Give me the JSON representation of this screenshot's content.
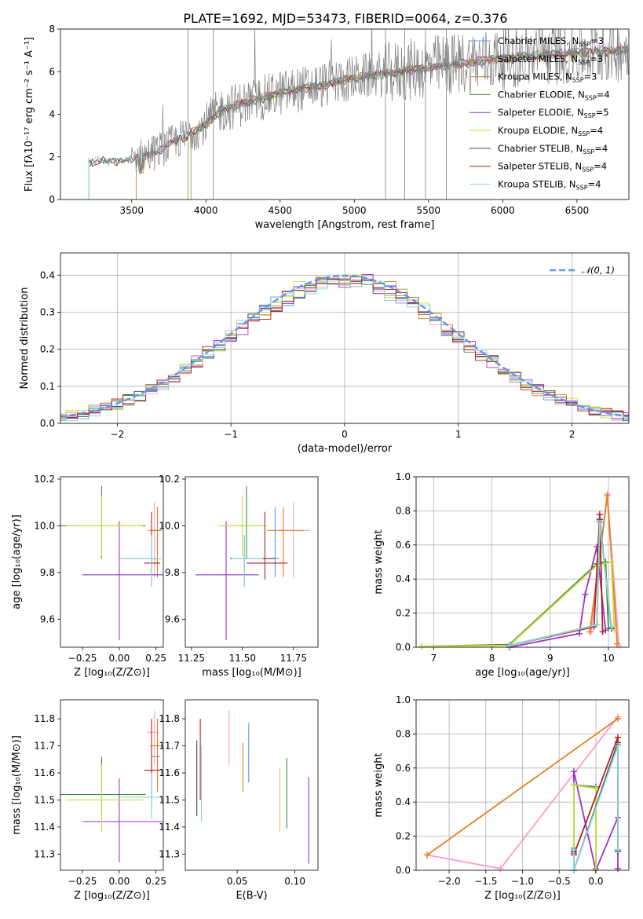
{
  "figure": {
    "title": "PLATE=1692, MJD=53473, FIBERID=0064, z=0.376"
  },
  "chart_data": [
    {
      "type": "line",
      "panel": "spectrum",
      "xlabel": "wavelength [Angstrom, rest frame]",
      "ylabel": "Flux [fλ10⁻¹⁷ erg cm⁻² s⁻¹ A⁻¹]",
      "xlim": [
        3020,
        6850
      ],
      "ylim": [
        0,
        8
      ],
      "xticks": [
        3500,
        4000,
        4500,
        5000,
        5500,
        6000,
        6500
      ],
      "yticks": [
        0,
        2,
        4,
        6,
        8
      ],
      "legend_position": "top-right",
      "continuum": {
        "x": [
          3200,
          3500,
          3700,
          4000,
          4100,
          4300,
          4500,
          4800,
          5000,
          5300,
          5600,
          5900,
          6200,
          6500,
          6850
        ],
        "y": [
          1.75,
          1.85,
          2.35,
          3.5,
          4.2,
          4.6,
          5.0,
          5.4,
          5.7,
          6.0,
          6.3,
          6.55,
          6.75,
          6.9,
          7.0
        ]
      },
      "series": [
        {
          "name": "Chabrier MILES, N_SSP=3",
          "label_main": "Chabrier MILES, N",
          "label_sub": "SSP",
          "label_tail": "=3",
          "color": "#6495ed",
          "xmin": 3530
        },
        {
          "name": "Salpeter MILES, N_SSP=3",
          "label_main": "Salpeter MILES, N",
          "label_sub": "SSP",
          "label_tail": "=3",
          "color": "#ff99cc",
          "xmin": 3530
        },
        {
          "name": "Kroupa MILES, N_SSP=3",
          "label_main": "Kroupa MILES, N",
          "label_sub": "SSP",
          "label_tail": "=3",
          "color": "#e08020",
          "xmin": 3530
        },
        {
          "name": "Chabrier ELODIE, N_SSP=4",
          "label_main": "Chabrier ELODIE, N",
          "label_sub": "SSP",
          "label_tail": "=4",
          "color": "#4a8a4a",
          "xmin": 3900
        },
        {
          "name": "Salpeter ELODIE, N_SSP=5",
          "label_main": "Salpeter ELODIE, N",
          "label_sub": "SSP",
          "label_tail": "=5",
          "color": "#9932cc",
          "xmin": 3900
        },
        {
          "name": "Kroupa ELODIE, N_SSP=4",
          "label_main": "Kroupa ELODIE, N",
          "label_sub": "SSP",
          "label_tail": "=4",
          "color": "#c8e03a",
          "xmin": 3900
        },
        {
          "name": "Chabrier STELIB, N_SSP=4",
          "label_main": "Chabrier STELIB, N",
          "label_sub": "SSP",
          "label_tail": "=4",
          "color": "#444444",
          "xmin": 3210
        },
        {
          "name": "Salpeter STELIB, N_SSP=4",
          "label_main": "Salpeter STELIB, N",
          "label_sub": "SSP",
          "label_tail": "=4",
          "color": "#b22222",
          "xmin": 3210
        },
        {
          "name": "Kroupa STELIB, N_SSP=4",
          "label_main": "Kroupa STELIB, N",
          "label_sub": "SSP",
          "label_tail": "=4",
          "color": "#88d8d8",
          "xmin": 3210
        }
      ],
      "data_color": "#808080"
    },
    {
      "type": "line",
      "panel": "residual-histogram",
      "xlabel": "(data-model)/error",
      "ylabel": "Normed distribution",
      "xlim": [
        -2.5,
        2.5
      ],
      "ylim": [
        0,
        0.46
      ],
      "xticks": [
        -2,
        -1,
        0,
        1,
        2
      ],
      "yticks": [
        0.0,
        0.1,
        0.2,
        0.3,
        0.4
      ],
      "grid": true,
      "legend_position": "top-right",
      "reference": {
        "name": "𝒩(0, 1)",
        "mean": 0,
        "sigma": 1,
        "color": "#6495ed"
      },
      "bin_width": 0.1,
      "hist_colors": [
        "#6495ed",
        "#ff99cc",
        "#e08020",
        "#4a8a4a",
        "#9932cc",
        "#c8e03a",
        "#444444",
        "#b22222",
        "#88d8d8"
      ]
    },
    {
      "type": "scatter",
      "panel": "age-vs-metallicity",
      "xlabel": "Z [log₁₀(Z/Z⊙)]",
      "ylabel": "age [log₁₀(age/yr)]",
      "xlim": [
        -0.4,
        0.3
      ],
      "ylim": [
        9.48,
        10.21
      ],
      "xticks": [
        -0.25,
        0.0,
        0.25
      ],
      "yticks": [
        9.6,
        9.8,
        10.0,
        10.2
      ],
      "points": [
        {
          "color": "#6495ed",
          "x": 0.26,
          "xerr": [
            0.04,
            0.02
          ],
          "y": 9.86,
          "yerr": [
            0.08,
            0.22
          ]
        },
        {
          "color": "#ff99cc",
          "x": 0.24,
          "xerr": [
            0.05,
            0.03
          ],
          "y": 9.98,
          "yerr": [
            0.2,
            0.12
          ]
        },
        {
          "color": "#e08020",
          "x": 0.26,
          "xerr": [
            0.05,
            0.03
          ],
          "y": 9.98,
          "yerr": [
            0.2,
            0.1
          ]
        },
        {
          "color": "#4a8a4a",
          "x": -0.12,
          "xerr": [
            0.28,
            0.3
          ],
          "y": 10.0,
          "yerr": [
            0.14,
            0.17
          ]
        },
        {
          "color": "#9932cc",
          "x": 0.0,
          "xerr": [
            0.25,
            0.3
          ],
          "y": 9.79,
          "yerr": [
            0.28,
            0.23
          ]
        },
        {
          "color": "#c8e03a",
          "x": -0.12,
          "xerr": [
            0.24,
            0.28
          ],
          "y": 10.0,
          "yerr": [
            0.13,
            0.13
          ]
        },
        {
          "color": "#444444",
          "x": 0.22,
          "xerr": [
            0.22,
            0.04
          ],
          "y": 9.86,
          "yerr": [
            0.12,
            0.1
          ]
        },
        {
          "color": "#b22222",
          "x": 0.22,
          "xerr": [
            0.05,
            0.06
          ],
          "y": 9.84,
          "yerr": [
            0.07,
            0.22
          ]
        },
        {
          "color": "#88d8d8",
          "x": 0.22,
          "xerr": [
            0.22,
            0.07
          ],
          "y": 9.86,
          "yerr": [
            0.12,
            0.1
          ]
        }
      ]
    },
    {
      "type": "scatter",
      "panel": "age-vs-mass",
      "xlabel": "mass [log₁₀(M/M⊙)]",
      "ylabel": "",
      "xlim": [
        11.22,
        11.87
      ],
      "ylim": [
        9.48,
        10.21
      ],
      "xticks": [
        11.25,
        11.5,
        11.75
      ],
      "yticks": [
        9.6,
        9.8,
        10.0,
        10.2
      ],
      "points": [
        {
          "color": "#6495ed",
          "x": 11.66,
          "xerr": [
            0.04,
            0.02
          ],
          "y": 9.86,
          "yerr": [
            0.08,
            0.22
          ]
        },
        {
          "color": "#ff99cc",
          "x": 11.75,
          "xerr": [
            0.1,
            0.08
          ],
          "y": 9.98,
          "yerr": [
            0.2,
            0.12
          ]
        },
        {
          "color": "#e08020",
          "x": 11.7,
          "xerr": [
            0.08,
            0.1
          ],
          "y": 9.98,
          "yerr": [
            0.2,
            0.1
          ]
        },
        {
          "color": "#4a8a4a",
          "x": 11.52,
          "xerr": [
            0.12,
            0.08
          ],
          "y": 10.0,
          "yerr": [
            0.14,
            0.17
          ]
        },
        {
          "color": "#9932cc",
          "x": 11.42,
          "xerr": [
            0.15,
            0.16
          ],
          "y": 9.79,
          "yerr": [
            0.28,
            0.23
          ]
        },
        {
          "color": "#c8e03a",
          "x": 11.5,
          "xerr": [
            0.12,
            0.12
          ],
          "y": 10.0,
          "yerr": [
            0.13,
            0.13
          ]
        },
        {
          "color": "#444444",
          "x": 11.51,
          "xerr": [
            0.07,
            0.15
          ],
          "y": 9.86,
          "yerr": [
            0.12,
            0.1
          ]
        },
        {
          "color": "#b22222",
          "x": 11.61,
          "xerr": [
            0.09,
            0.11
          ],
          "y": 9.84,
          "yerr": [
            0.07,
            0.22
          ]
        },
        {
          "color": "#88d8d8",
          "x": 11.51,
          "xerr": [
            0.06,
            0.09
          ],
          "y": 9.86,
          "yerr": [
            0.12,
            0.1
          ]
        }
      ]
    },
    {
      "type": "line",
      "panel": "mass-weight-vs-age",
      "xlabel": "age [log₁₀(age/yr)]",
      "ylabel": "mass weight",
      "xlim": [
        6.7,
        10.35
      ],
      "ylim": [
        0,
        1
      ],
      "xticks": [
        7,
        8,
        9,
        10
      ],
      "yticks": [
        0.0,
        0.2,
        0.4,
        0.6,
        0.8,
        1.0
      ],
      "grid": true,
      "series": [
        {
          "color": "#6495ed",
          "x": [
            8.3,
            9.8,
            9.85,
            10.05
          ],
          "y": [
            0.01,
            0.13,
            0.74,
            0.12
          ]
        },
        {
          "color": "#ff99cc",
          "x": [
            9.7,
            9.98,
            10.18
          ],
          "y": [
            0.09,
            0.9,
            0.01
          ]
        },
        {
          "color": "#e08020",
          "x": [
            9.68,
            9.98,
            10.15
          ],
          "y": [
            0.09,
            0.89,
            0.02
          ]
        },
        {
          "color": "#4a8a4a",
          "x": [
            6.8,
            8.3,
            9.8,
            9.95,
            10.0
          ],
          "y": [
            0.005,
            0.015,
            0.49,
            0.5,
            0.11
          ]
        },
        {
          "color": "#9932cc",
          "x": [
            8.3,
            9.5,
            9.6,
            9.8,
            9.95
          ],
          "y": [
            0.0,
            0.08,
            0.31,
            0.59,
            0.1
          ]
        },
        {
          "color": "#c8e03a",
          "x": [
            6.8,
            8.3,
            9.8,
            10.05,
            10.1
          ],
          "y": [
            0.005,
            0.01,
            0.48,
            0.5,
            0.1
          ]
        },
        {
          "color": "#444444",
          "x": [
            8.3,
            9.8,
            9.85,
            10.05
          ],
          "y": [
            0.01,
            0.13,
            0.75,
            0.11
          ]
        },
        {
          "color": "#b22222",
          "x": [
            8.3,
            9.75,
            9.85,
            9.9
          ],
          "y": [
            0.01,
            0.12,
            0.78,
            0.09
          ]
        },
        {
          "color": "#88d8d8",
          "x": [
            8.3,
            9.8,
            9.85,
            10.05
          ],
          "y": [
            0.01,
            0.13,
            0.73,
            0.12
          ]
        }
      ]
    },
    {
      "type": "scatter",
      "panel": "mass-vs-metallicity",
      "xlabel": "Z [log₁₀(Z/Z⊙)]",
      "ylabel": "mass [log₁₀(M/M⊙)]",
      "xlim": [
        -0.4,
        0.3
      ],
      "ylim": [
        11.24,
        11.87
      ],
      "xticks": [
        -0.25,
        0.0,
        0.25
      ],
      "yticks": [
        11.3,
        11.4,
        11.5,
        11.6,
        11.7,
        11.8
      ],
      "points": [
        {
          "color": "#6495ed",
          "x": 0.26,
          "xerr": [
            0.04,
            0.02
          ],
          "y": 11.66,
          "yerr": [
            0.1,
            0.13
          ]
        },
        {
          "color": "#ff99cc",
          "x": 0.24,
          "xerr": [
            0.05,
            0.03
          ],
          "y": 11.75,
          "yerr": [
            0.12,
            0.08
          ]
        },
        {
          "color": "#e08020",
          "x": 0.26,
          "xerr": [
            0.05,
            0.03
          ],
          "y": 11.7,
          "yerr": [
            0.17,
            0.1
          ]
        },
        {
          "color": "#4a8a4a",
          "x": -0.12,
          "xerr": [
            0.28,
            0.3
          ],
          "y": 11.52,
          "yerr": [
            0.08,
            0.14
          ]
        },
        {
          "color": "#9932cc",
          "x": 0.0,
          "xerr": [
            0.25,
            0.3
          ],
          "y": 11.42,
          "yerr": [
            0.15,
            0.16
          ]
        },
        {
          "color": "#c8e03a",
          "x": -0.12,
          "xerr": [
            0.24,
            0.28
          ],
          "y": 11.5,
          "yerr": [
            0.12,
            0.13
          ]
        },
        {
          "color": "#444444",
          "x": 0.22,
          "xerr": [
            0.22,
            0.04
          ],
          "y": 11.51,
          "yerr": [
            0.06,
            0.15
          ]
        },
        {
          "color": "#b22222",
          "x": 0.22,
          "xerr": [
            0.05,
            0.06
          ],
          "y": 11.61,
          "yerr": [
            0.1,
            0.19
          ]
        },
        {
          "color": "#88d8d8",
          "x": 0.22,
          "xerr": [
            0.22,
            0.07
          ],
          "y": 11.51,
          "yerr": [
            0.08,
            0.09
          ]
        }
      ]
    },
    {
      "type": "scatter",
      "panel": "mass-vs-ebv",
      "xlabel": "E(B-V)",
      "ylabel": "",
      "xlim": [
        0.005,
        0.12
      ],
      "ylim": [
        11.24,
        11.87
      ],
      "xticks": [
        0.05,
        0.1
      ],
      "yticks": [
        11.3,
        11.4,
        11.5,
        11.6,
        11.7,
        11.8
      ],
      "points": [
        {
          "color": "#6495ed",
          "x": 0.06,
          "y": 11.675,
          "yerr": [
            0.11,
            0.11
          ]
        },
        {
          "color": "#ff99cc",
          "x": 0.043,
          "y": 11.73,
          "yerr": [
            0.1,
            0.1
          ]
        },
        {
          "color": "#e08020",
          "x": 0.055,
          "y": 11.62,
          "yerr": [
            0.09,
            0.09
          ]
        },
        {
          "color": "#4a8a4a",
          "x": 0.093,
          "y": 11.525,
          "yerr": [
            0.13,
            0.13
          ]
        },
        {
          "color": "#9932cc",
          "x": 0.112,
          "y": 11.425,
          "yerr": [
            0.16,
            0.16
          ]
        },
        {
          "color": "#c8e03a",
          "x": 0.087,
          "y": 11.5,
          "yerr": [
            0.12,
            0.12
          ]
        },
        {
          "color": "#444444",
          "x": 0.015,
          "y": 11.58,
          "yerr": [
            0.14,
            0.14
          ]
        },
        {
          "color": "#b22222",
          "x": 0.018,
          "y": 11.65,
          "yerr": [
            0.15,
            0.15
          ]
        },
        {
          "color": "#88d8d8",
          "x": 0.019,
          "y": 11.56,
          "yerr": [
            0.14,
            0.14
          ]
        }
      ]
    },
    {
      "type": "line",
      "panel": "mass-weight-vs-metallicity",
      "xlabel": "Z [log₁₀(Z/Z⊙)]",
      "ylabel": "mass weight",
      "xlim": [
        -2.45,
        0.45
      ],
      "ylim": [
        0,
        1
      ],
      "xticks": [
        -2.0,
        -1.5,
        -1.0,
        -0.5,
        0.0
      ],
      "yticks": [
        0.0,
        0.2,
        0.4,
        0.6,
        0.8,
        1.0
      ],
      "grid": true,
      "series": [
        {
          "color": "#6495ed",
          "x": [
            -0.3,
            -0.3,
            0.3,
            0.3
          ],
          "y": [
            0.12,
            0.0,
            0.74,
            0.12
          ]
        },
        {
          "color": "#ff99cc",
          "x": [
            -2.3,
            -1.3,
            0.3
          ],
          "y": [
            0.09,
            0.01,
            0.9
          ]
        },
        {
          "color": "#e08020",
          "x": [
            -2.3,
            0.3
          ],
          "y": [
            0.09,
            0.89
          ]
        },
        {
          "color": "#4a8a4a",
          "x": [
            -0.3,
            -0.3,
            0.0,
            0.0
          ],
          "y": [
            0.13,
            0.5,
            0.49,
            0.01
          ]
        },
        {
          "color": "#9932cc",
          "x": [
            -0.3,
            -0.3,
            0.0,
            0.3,
            0.3
          ],
          "y": [
            0.1,
            0.58,
            0.0,
            0.31,
            0.01
          ]
        },
        {
          "color": "#c8e03a",
          "x": [
            -0.3,
            -0.3,
            0.0,
            0.0
          ],
          "y": [
            0.12,
            0.5,
            0.48,
            0.0
          ]
        },
        {
          "color": "#444444",
          "x": [
            -0.3,
            -0.3,
            0.3,
            0.3
          ],
          "y": [
            0.11,
            0.0,
            0.75,
            0.11
          ]
        },
        {
          "color": "#b22222",
          "x": [
            -0.3,
            0.3,
            0.3
          ],
          "y": [
            0.09,
            0.78,
            0.12
          ]
        },
        {
          "color": "#88d8d8",
          "x": [
            -0.3,
            -0.3,
            0.3,
            0.3
          ],
          "y": [
            0.12,
            0.0,
            0.73,
            0.12
          ]
        }
      ]
    }
  ]
}
